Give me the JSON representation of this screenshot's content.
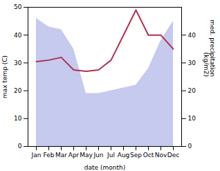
{
  "chart_data": {
    "type": "line",
    "categories": [
      "Jan",
      "Feb",
      "Mar",
      "Apr",
      "May",
      "Jun",
      "Jul",
      "Aug",
      "Sep",
      "Oct",
      "Nov",
      "Dec"
    ],
    "series": [
      {
        "type": "area",
        "axis": "y2",
        "color": "#c5caee",
        "values": [
          46,
          43,
          42,
          35,
          19,
          19,
          20,
          21,
          22,
          28,
          38,
          45
        ]
      },
      {
        "type": "line",
        "color": "#b03050",
        "values": [
          30.5,
          31.0,
          32.0,
          27.5,
          27.0,
          27.5,
          31.0,
          40.0,
          49.0,
          40.0,
          40.0,
          35.0
        ]
      }
    ],
    "xlabel": "date (month)",
    "ylabel": "max temp (C)",
    "y2label": "med. precipitation\n(kg/m2)",
    "ylim": [
      0,
      50
    ],
    "yticks": [
      0,
      10,
      20,
      30,
      40,
      50
    ],
    "y2lim": [
      0,
      50
    ],
    "y2ticks": [
      0,
      10,
      20,
      30,
      40
    ],
    "grid": false
  }
}
